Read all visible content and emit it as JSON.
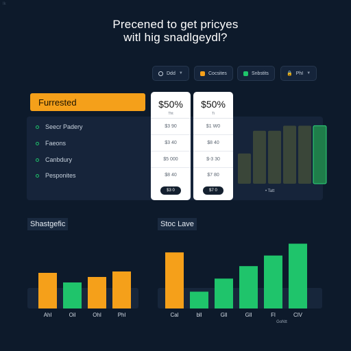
{
  "corner_mark": "Ik",
  "headline": {
    "line1": "Precened to get pricyes",
    "line2": "witl hig snadlgeydl?"
  },
  "filters": [
    {
      "label": "Ddd",
      "icon": "ring-icon"
    },
    {
      "label": "Cocsites",
      "color": "#f5a01a"
    },
    {
      "label": "Snbstits",
      "color": "#1fc46b"
    },
    {
      "label": "PhI",
      "icon": "lock-icon"
    }
  ],
  "feature_label": "Furrested",
  "rows": [
    "Seecr Padery",
    "Faeons",
    "Canbdury",
    "Pesponites"
  ],
  "plans": [
    {
      "price": "$50%",
      "sub": "Tht",
      "cells": [
        "$3 90",
        "$3 40",
        "$5 000",
        "$8 40"
      ],
      "tag": "$3 0"
    },
    {
      "price": "$50%",
      "sub": "Ti",
      "cells": [
        "$1 W0",
        "$8 40",
        "$-3 30",
        "$7 80"
      ],
      "tag": "$7 0"
    }
  ],
  "mini_chart": {
    "label": "• Tatt",
    "values": [
      2.4,
      4.2,
      4.2,
      4.6,
      4.6,
      4.6
    ],
    "highlight_index": 5,
    "colors": {
      "bar": "#3a4639",
      "highlight": "#1f7d4a"
    }
  },
  "colors": {
    "orange": "#f5a01a",
    "green": "#1fc46b",
    "background": "#0d1a2b"
  },
  "chart_data": [
    {
      "type": "bar",
      "title": "Shastgefic",
      "categories": [
        "Ahl",
        "Oil",
        "Ohl",
        "Phl"
      ],
      "values": [
        52,
        38,
        46,
        54
      ],
      "colors": [
        "#f5a01a",
        "#1fc46b",
        "#f5a01a",
        "#f5a01a"
      ],
      "ylim": [
        0,
        100
      ]
    },
    {
      "type": "bar",
      "title": "Stoc Lave",
      "categories": [
        "Cal",
        "bll",
        "Gll",
        "Gll",
        "Fl",
        "ClV"
      ],
      "values": [
        90,
        27,
        48,
        68,
        85,
        104
      ],
      "colors": [
        "#f5a01a",
        "#1fc46b",
        "#1fc46b",
        "#1fc46b",
        "#1fc46b",
        "#1fc46b"
      ],
      "annotation": "GoNtt",
      "ylim": [
        0,
        110
      ]
    }
  ]
}
